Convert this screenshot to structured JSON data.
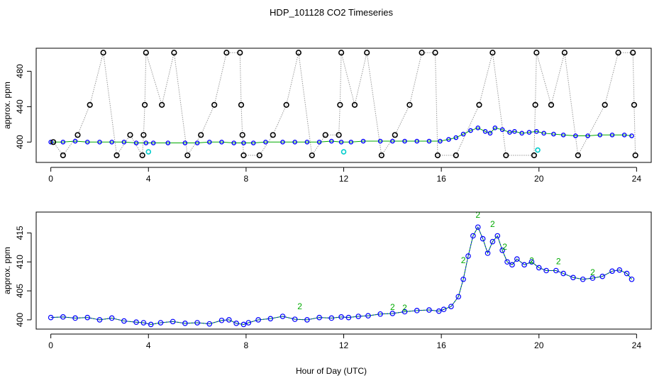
{
  "figure": {
    "title": "HDP_101128  CO2 Timeseries",
    "xlabel": "Hour of Day (UTC)"
  },
  "colors": {
    "series_raw": "#000000",
    "series_blue": "#0000ff",
    "series_cyan": "#00cccc",
    "series_green": "#00aa00",
    "drop_lines": "#999999",
    "axes": "#000000"
  },
  "chart_data": [
    {
      "type": "scatter",
      "panel": "top",
      "title": "",
      "xlabel": "",
      "ylabel": "approx. ppm",
      "xlim": [
        -0.6,
        24.6
      ],
      "ylim": [
        377,
        506
      ],
      "xticks": [
        0,
        4,
        8,
        12,
        16,
        20,
        24
      ],
      "yticks": [
        400,
        440,
        480
      ],
      "grid": false,
      "legend": "none",
      "series": [
        {
          "marker": "black-open-circle",
          "x": [
            0.1,
            0.5,
            1.1,
            1.6,
            2.15,
            2.7,
            3.25,
            3.75,
            3.8,
            3.85,
            3.9,
            4.55,
            5.05,
            5.6,
            6.15,
            6.7,
            7.2,
            7.75,
            7.8,
            7.85,
            7.9,
            8.55,
            9.1,
            9.65,
            10.15,
            10.7,
            11.25,
            11.8,
            11.85,
            11.9,
            12.45,
            12.95,
            13.55,
            14.1,
            14.7,
            15.2,
            15.75,
            15.85,
            16.6,
            17.55,
            18.1,
            18.65,
            19.8,
            19.85,
            19.9,
            20.5,
            21.05,
            21.6,
            22.7,
            23.25,
            23.85,
            23.9,
            23.95
          ],
          "y": [
            400,
            385,
            408,
            442,
            501,
            385,
            408,
            385,
            408,
            442,
            501,
            442,
            501,
            385,
            408,
            442,
            501,
            501,
            442,
            408,
            385,
            385,
            408,
            442,
            501,
            385,
            408,
            408,
            442,
            501,
            442,
            501,
            385,
            408,
            442,
            501,
            501,
            385,
            385,
            442,
            501,
            385,
            385,
            442,
            501,
            442,
            501,
            385,
            442,
            501,
            501,
            442,
            385
          ]
        },
        {
          "marker": "blue-small-circle",
          "x": [
            0,
            0.5,
            1,
            1.5,
            2,
            2.5,
            3,
            3.5,
            3.9,
            4.2,
            4.8,
            5.5,
            6,
            6.5,
            7,
            7.5,
            7.9,
            8.3,
            8.8,
            9.5,
            10,
            10.5,
            11,
            11.5,
            11.9,
            12.3,
            12.8,
            13.5,
            14,
            14.5,
            15,
            15.5,
            15.95,
            16.3,
            16.6,
            16.9,
            17.2,
            17.5,
            17.8,
            18,
            18.2,
            18.5,
            18.8,
            19,
            19.3,
            19.6,
            19.9,
            20.2,
            20.6,
            21,
            21.5,
            22,
            22.5,
            23,
            23.5,
            23.8
          ],
          "y": [
            400,
            400,
            401,
            400,
            400,
            400,
            400,
            399,
            399,
            399,
            399,
            399,
            399,
            400,
            400,
            399,
            399,
            399,
            400,
            400,
            400,
            400,
            400,
            401,
            400,
            400,
            401,
            401,
            401,
            401,
            401,
            401,
            401,
            403,
            405,
            409,
            413,
            416,
            412,
            410,
            416,
            414,
            411,
            412,
            410,
            411,
            412,
            410,
            409,
            408,
            407,
            407,
            408,
            408,
            408,
            407
          ]
        },
        {
          "marker": "cyan-circle",
          "x": [
            4.0,
            12.0,
            19.95
          ],
          "y": [
            389,
            389,
            391
          ]
        }
      ]
    },
    {
      "type": "line",
      "panel": "bottom",
      "title": "",
      "xlabel": "",
      "ylabel": "approx. ppm",
      "xlim": [
        -0.6,
        24.6
      ],
      "ylim": [
        398.4,
        418.6
      ],
      "xticks": [
        0,
        4,
        8,
        12,
        16,
        20,
        24
      ],
      "yticks": [
        400,
        405,
        410,
        415
      ],
      "grid": false,
      "legend": "none",
      "series": [
        {
          "marker": "blue-open-circle",
          "x": [
            0,
            0.5,
            1,
            1.5,
            2,
            2.5,
            3,
            3.5,
            3.8,
            4.1,
            4.5,
            5,
            5.5,
            6,
            6.5,
            7,
            7.3,
            7.6,
            7.9,
            8.1,
            8.5,
            9,
            9.5,
            10,
            10.5,
            11,
            11.5,
            11.9,
            12.2,
            12.6,
            13,
            13.5,
            14,
            14.5,
            15,
            15.5,
            15.9,
            16.1,
            16.4,
            16.7,
            16.9,
            17.1,
            17.3,
            17.5,
            17.7,
            17.9,
            18.1,
            18.3,
            18.5,
            18.7,
            18.9,
            19.1,
            19.4,
            19.7,
            20,
            20.3,
            20.7,
            21,
            21.4,
            21.8,
            22.2,
            22.6,
            23,
            23.3,
            23.6,
            23.8
          ],
          "y": [
            400.4,
            400.5,
            400.3,
            400.4,
            400,
            400.3,
            399.8,
            399.6,
            399.5,
            399.2,
            399.5,
            399.7,
            399.4,
            399.5,
            399.3,
            399.9,
            400,
            399.4,
            399.2,
            399.5,
            400,
            400.2,
            400.6,
            400.1,
            400,
            400.4,
            400.3,
            400.5,
            400.4,
            400.6,
            400.7,
            401,
            401.1,
            401.4,
            401.6,
            401.7,
            401.5,
            401.8,
            402.3,
            404,
            407,
            411,
            414.5,
            416,
            414,
            411.5,
            413.5,
            414.5,
            412,
            410,
            409.5,
            410.5,
            409.5,
            410,
            409,
            408.5,
            408.5,
            408,
            407.3,
            407,
            407.2,
            407.5,
            408.4,
            408.6,
            408,
            407
          ]
        },
        {
          "marker": "green-digit-2",
          "label": "2",
          "x": [
            10.2,
            14.0,
            14.5,
            16.9,
            17.5,
            18.1,
            18.6,
            19.7,
            20.8,
            22.2
          ],
          "y": [
            402.3,
            402.2,
            402.1,
            410.3,
            418.1,
            416.5,
            412.6,
            410.2,
            410.1,
            408.2
          ]
        }
      ]
    }
  ]
}
